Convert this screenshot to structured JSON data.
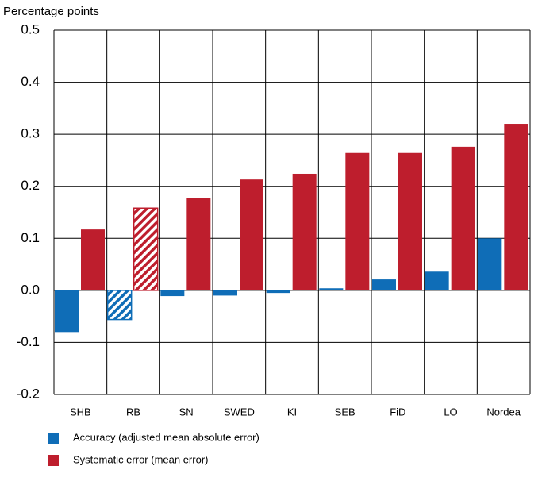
{
  "chart_data": {
    "type": "bar",
    "y_axis_label": "Percentage points",
    "categories": [
      "SHB",
      "RB",
      "SN",
      "SWED",
      "KI",
      "SEB",
      "FiD",
      "LO",
      "Nordea"
    ],
    "series": [
      {
        "name": "Accuracy (adjusted mean absolute error)",
        "color": "#0f6db7",
        "values": [
          -0.08,
          -0.056,
          -0.011,
          -0.01,
          -0.005,
          0.004,
          0.021,
          0.036,
          0.1
        ]
      },
      {
        "name": "Systematic error (mean error)",
        "color": "#be1e2d",
        "values": [
          0.117,
          0.158,
          0.177,
          0.213,
          0.224,
          0.264,
          0.264,
          0.276,
          0.32
        ]
      }
    ],
    "hatched_category_index": 1,
    "ylim": [
      -0.2,
      0.5
    ],
    "yticks": [
      -0.2,
      -0.1,
      {
        "value": 0,
        "label": "0.0"
      },
      0.1,
      0.2,
      0.3,
      0.4,
      0.5
    ],
    "grid": true
  }
}
